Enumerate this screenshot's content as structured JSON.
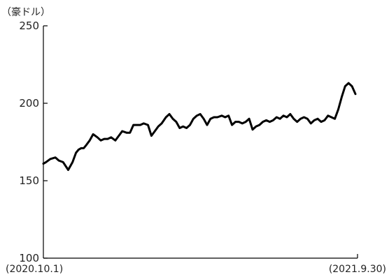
{
  "chart_data": {
    "type": "line",
    "unit_label": "（豪ドル）",
    "xlabel": "",
    "ylabel": "",
    "ylim": [
      100,
      250
    ],
    "y_ticks": [
      100,
      150,
      200,
      250
    ],
    "x_start_label": "(2020.10.1)",
    "x_end_label": "(2021.9.30)",
    "grid": false,
    "color": "#000000",
    "series": [
      {
        "x": [
          "2020-10-01",
          "2020-10-04",
          "2020-10-09",
          "2020-10-15",
          "2020-10-19",
          "2020-10-24",
          "2020-10-30",
          "2020-11-04",
          "2020-11-08",
          "2020-11-11",
          "2020-11-14",
          "2020-11-17",
          "2020-11-20",
          "2020-11-24",
          "2020-11-28",
          "2020-12-03",
          "2020-12-07",
          "2020-12-11",
          "2020-12-15",
          "2020-12-19",
          "2020-12-24",
          "2020-12-28",
          "2021-01-01",
          "2021-01-06",
          "2021-01-10",
          "2021-01-14",
          "2021-01-18",
          "2021-01-22",
          "2021-01-26",
          "2021-01-31",
          "2021-02-04",
          "2021-02-08",
          "2021-02-12",
          "2021-02-16",
          "2021-02-21",
          "2021-02-25",
          "2021-03-01",
          "2021-03-05",
          "2021-03-09",
          "2021-03-13",
          "2021-03-17",
          "2021-03-21",
          "2021-03-25",
          "2021-03-29",
          "2021-04-02",
          "2021-04-06",
          "2021-04-10",
          "2021-04-14",
          "2021-04-18",
          "2021-04-22",
          "2021-04-27",
          "2021-05-01",
          "2021-05-05",
          "2021-05-09",
          "2021-05-13",
          "2021-05-17",
          "2021-05-21",
          "2021-05-25",
          "2021-05-29",
          "2021-06-02",
          "2021-06-06",
          "2021-06-10",
          "2021-06-14",
          "2021-06-18",
          "2021-06-22",
          "2021-06-26",
          "2021-06-30",
          "2021-07-04",
          "2021-07-08",
          "2021-07-12",
          "2021-07-16",
          "2021-07-20",
          "2021-07-24",
          "2021-07-28",
          "2021-08-01",
          "2021-08-05",
          "2021-08-09",
          "2021-08-13",
          "2021-08-17",
          "2021-08-21",
          "2021-08-25",
          "2021-08-29",
          "2021-09-02",
          "2021-09-06",
          "2021-09-10",
          "2021-09-14",
          "2021-09-18",
          "2021-09-22",
          "2021-09-26",
          "2021-09-30"
        ],
        "values": [
          161,
          162,
          164,
          165,
          163,
          162,
          157,
          162,
          168,
          170,
          171,
          171,
          173,
          176,
          180,
          178,
          176,
          177,
          177,
          178,
          176,
          179,
          182,
          181,
          181,
          186,
          186,
          186,
          187,
          186,
          179,
          182,
          185,
          187,
          191,
          193,
          190,
          188,
          184,
          185,
          184,
          186,
          190,
          192,
          193,
          190,
          186,
          190,
          191,
          191,
          192,
          191,
          192,
          186,
          188,
          188,
          187,
          188,
          190,
          183,
          185,
          186,
          188,
          189,
          188,
          189,
          191,
          190,
          192,
          191,
          193,
          190,
          188,
          190,
          191,
          190,
          187,
          189,
          190,
          188,
          189,
          192,
          191,
          190,
          196,
          204,
          211,
          213,
          211,
          206
        ]
      }
    ]
  }
}
